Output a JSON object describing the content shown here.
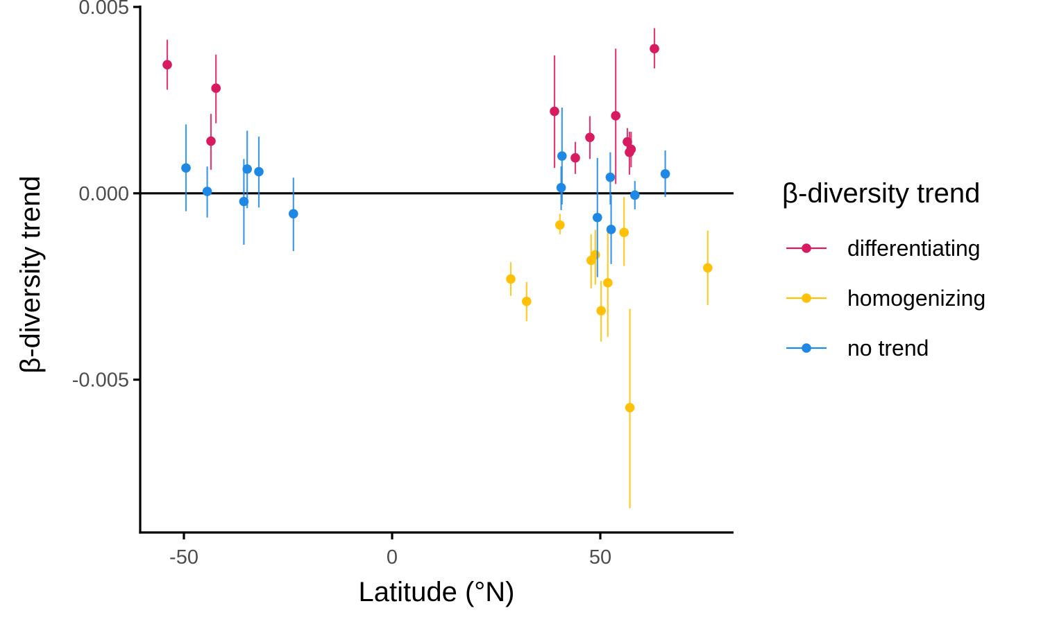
{
  "chart_data": {
    "type": "scatter",
    "title": "",
    "xlabel": "Latitude (°N)",
    "ylabel": "β-diversity trend",
    "xlim": [
      -60.5,
      82
    ],
    "ylim": [
      -0.0091,
      0.005
    ],
    "x_ticks": [
      {
        "value": -50,
        "label": "-50"
      },
      {
        "value": 0,
        "label": "0"
      },
      {
        "value": 50,
        "label": "50"
      }
    ],
    "y_ticks": [
      {
        "value": 0.005,
        "label": "0.005"
      },
      {
        "value": 0.0,
        "label": "0.000"
      },
      {
        "value": -0.005,
        "label": "-0.005"
      }
    ],
    "reference_line_y": 0,
    "grid": false,
    "error_bars": true,
    "legend": {
      "title": "β-diversity trend",
      "position": "right"
    },
    "series": [
      {
        "name": "differentiating",
        "color": "#d81b60",
        "points": [
          {
            "x": -54.0,
            "y": 0.00345,
            "lo": 0.00278,
            "hi": 0.00412
          },
          {
            "x": -43.5,
            "y": 0.0014,
            "lo": 0.00063,
            "hi": 0.00213
          },
          {
            "x": -42.3,
            "y": 0.00282,
            "lo": 0.00188,
            "hi": 0.00372
          },
          {
            "x": 39.0,
            "y": 0.0022,
            "lo": 0.00068,
            "hi": 0.0037
          },
          {
            "x": 44.0,
            "y": 0.00095,
            "lo": 0.00052,
            "hi": 0.00138
          },
          {
            "x": 47.5,
            "y": 0.0015,
            "lo": 0.00092,
            "hi": 0.00207
          },
          {
            "x": 53.7,
            "y": 0.00208,
            "lo": 0.00025,
            "hi": 0.00388
          },
          {
            "x": 56.5,
            "y": 0.00138,
            "lo": 0.001,
            "hi": 0.00175
          },
          {
            "x": 57.0,
            "y": 0.0011,
            "lo": 0.0005,
            "hi": 0.00165
          },
          {
            "x": 57.4,
            "y": 0.00118,
            "lo": 0.0007,
            "hi": 0.00165
          },
          {
            "x": 63.0,
            "y": 0.00388,
            "lo": 0.00335,
            "hi": 0.00443
          }
        ]
      },
      {
        "name": "homogenizing",
        "color": "#ffc107",
        "points": [
          {
            "x": 28.5,
            "y": -0.0023,
            "lo": -0.00275,
            "hi": -0.00185
          },
          {
            "x": 32.3,
            "y": -0.0029,
            "lo": -0.00343,
            "hi": -0.00238
          },
          {
            "x": 40.3,
            "y": -0.00085,
            "lo": -0.0011,
            "hi": -0.00055
          },
          {
            "x": 47.8,
            "y": -0.0018,
            "lo": -0.00255,
            "hi": -0.0011
          },
          {
            "x": 48.8,
            "y": -0.00165,
            "lo": -0.00245,
            "hi": -0.00098
          },
          {
            "x": 50.2,
            "y": -0.00315,
            "lo": -0.00398,
            "hi": -0.00235
          },
          {
            "x": 51.8,
            "y": -0.0024,
            "lo": -0.00385,
            "hi": -0.00088
          },
          {
            "x": 55.7,
            "y": -0.00105,
            "lo": -0.00195,
            "hi": -0.0001
          },
          {
            "x": 57.1,
            "y": -0.00575,
            "lo": -0.00845,
            "hi": -0.0031
          },
          {
            "x": 75.8,
            "y": -0.002,
            "lo": -0.003,
            "hi": -0.001
          }
        ]
      },
      {
        "name": "no trend",
        "color": "#1e88e5",
        "points": [
          {
            "x": -49.5,
            "y": 0.00068,
            "lo": -0.00048,
            "hi": 0.00185
          },
          {
            "x": -44.4,
            "y": 5e-05,
            "lo": -0.00065,
            "hi": 0.00072
          },
          {
            "x": -35.6,
            "y": -0.00022,
            "lo": -0.00138,
            "hi": 0.00092
          },
          {
            "x": -34.8,
            "y": 0.00065,
            "lo": -0.0004,
            "hi": 0.00168
          },
          {
            "x": -32.0,
            "y": 0.00058,
            "lo": -0.00038,
            "hi": 0.00152
          },
          {
            "x": -23.7,
            "y": -0.00055,
            "lo": -0.00155,
            "hi": 0.00042
          },
          {
            "x": 40.6,
            "y": 0.00015,
            "lo": -0.00045,
            "hi": 0.00072
          },
          {
            "x": 40.8,
            "y": 0.001,
            "lo": -0.0003,
            "hi": 0.0023
          },
          {
            "x": 49.3,
            "y": -0.00065,
            "lo": -0.00225,
            "hi": 0.00095
          },
          {
            "x": 52.4,
            "y": 0.00043,
            "lo": -0.0003,
            "hi": 0.0011
          },
          {
            "x": 52.6,
            "y": -0.00097,
            "lo": -0.0019,
            "hi": -5e-05
          },
          {
            "x": 58.3,
            "y": -5e-05,
            "lo": -0.00043,
            "hi": 0.00033
          },
          {
            "x": 65.6,
            "y": 0.00052,
            "lo": -0.0001,
            "hi": 0.00115
          }
        ]
      }
    ]
  }
}
